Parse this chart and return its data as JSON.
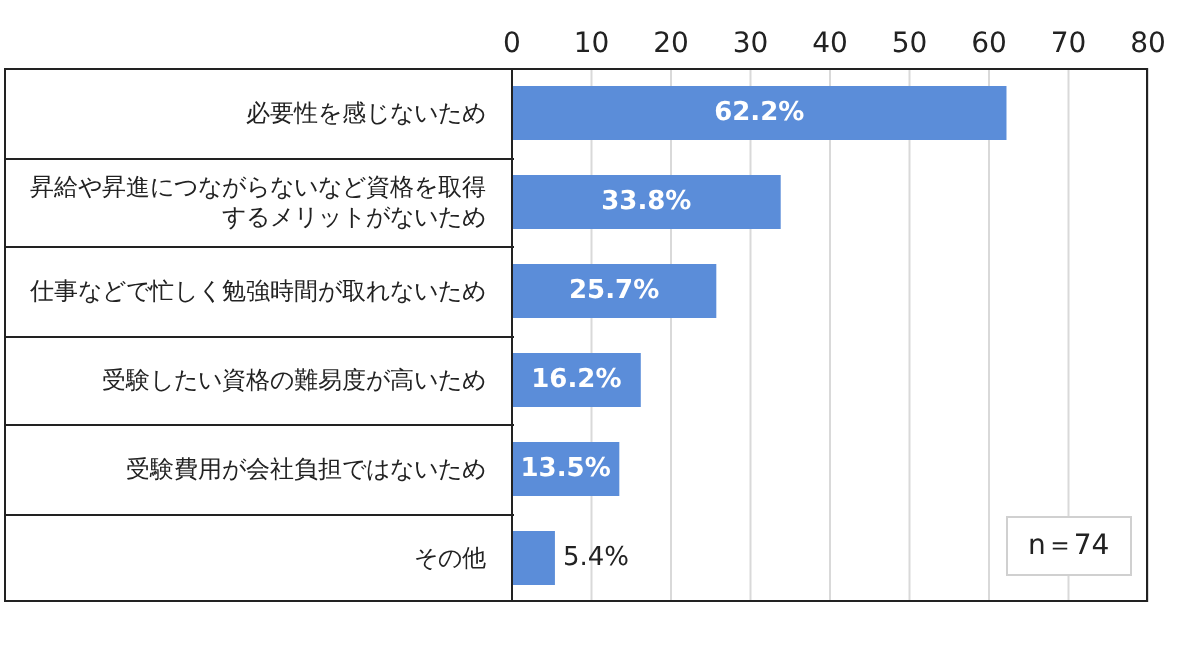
{
  "chart_data": {
    "type": "bar",
    "orientation": "horizontal",
    "categories": [
      "必要性を感じないため",
      "昇給や昇進につながらないなど資格を取得するメリットがないため",
      "仕事などで忙しく勉強時間が取れないため",
      "受験したい資格の難易度が高いため",
      "受験費用が会社負担ではないため",
      "その他"
    ],
    "values": [
      62.2,
      33.8,
      25.7,
      16.2,
      13.5,
      5.4
    ],
    "value_labels": [
      "62.2%",
      "33.8%",
      "25.7%",
      "16.2%",
      "13.5%",
      "5.4%"
    ],
    "color": "#5b8dd9",
    "xlim": [
      0,
      80
    ],
    "xticks": [
      0,
      10,
      20,
      30,
      40,
      50,
      60,
      70,
      80
    ],
    "grid": "x",
    "annotations": [
      "n＝74"
    ]
  }
}
